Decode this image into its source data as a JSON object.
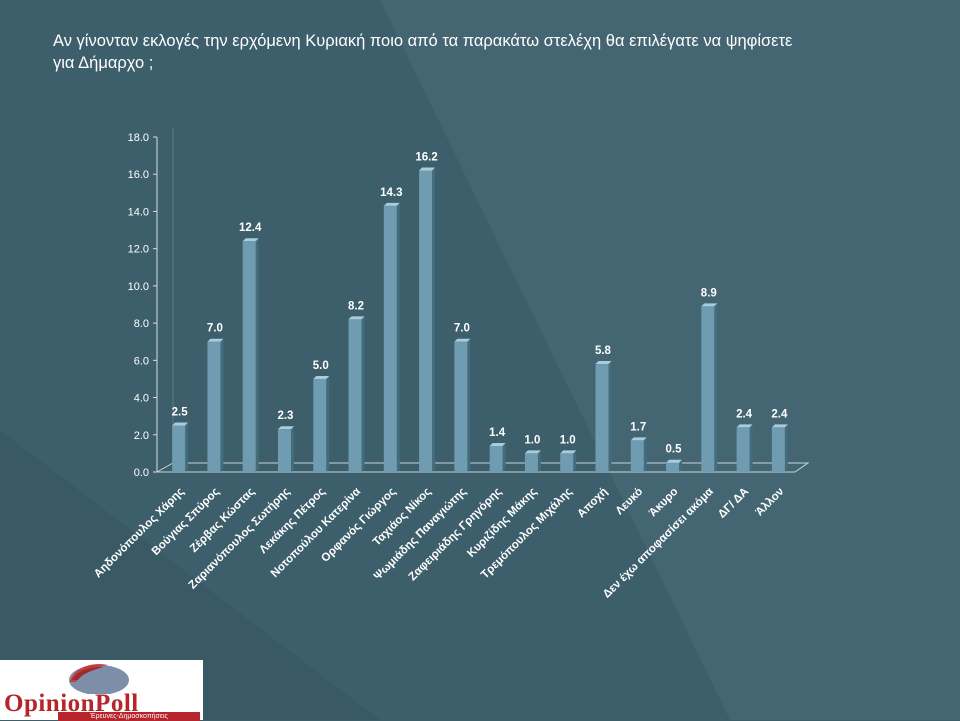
{
  "page": {
    "title": "Αν γίνονταν εκλογές την ερχόμενη Κυριακή ποιο από τα παρακάτω στελέχη θα επιλέγατε να ψηφίσετε για Δήμαρχο ;"
  },
  "logo": {
    "name": "OpinionPoll",
    "tagline": "Έρευνες-Δημοσκοπήσεις"
  },
  "colors": {
    "background": "#3d5e6b",
    "bar_front": "#6f9cb0",
    "bar_side": "#436c7d",
    "bar_top": "#a9cddd",
    "text": "#ffffff",
    "logo_red": "#b5252b"
  },
  "chart_data": {
    "type": "bar",
    "title": "",
    "xlabel": "",
    "ylabel": "",
    "ylim": [
      0,
      18
    ],
    "yticks": [
      "0.0",
      "2.0",
      "4.0",
      "6.0",
      "8.0",
      "10.0",
      "12.0",
      "14.0",
      "16.0",
      "18.0"
    ],
    "grid": false,
    "legend": "none",
    "categories": [
      "Αηδονόπουλος Χάρης",
      "Βούγιας Σπύρος",
      "Ζέρβας Κώστας",
      "Ζαριανόπουλος Σωτήρης",
      "Λεκάκης Πέτρος",
      "Νοτοπούλου Κατερίνα",
      "Ορφανός Γιώργος",
      "Ταχιάος Νίκος",
      "Ψωμιάδης Παναγιώτης",
      "Ζαφειριάδης Γρηγόρης",
      "Κυριζίδης Μάκης",
      "Τρεμόπουλος Μιχάλης",
      "Αποχή",
      "Λευκό",
      "Άκυρο",
      "Δεν έχω αποφασίσει ακόμα",
      "ΔΓ/ ΔΑ",
      "Άλλον"
    ],
    "values": [
      2.5,
      7.0,
      12.4,
      2.3,
      5.0,
      8.2,
      14.3,
      16.2,
      7.0,
      1.4,
      1.0,
      1.0,
      5.8,
      1.7,
      0.5,
      8.9,
      2.4,
      2.4
    ],
    "value_labels": [
      "2.5",
      "7.0",
      "12.4",
      "2.3",
      "5.0",
      "8.2",
      "14.3",
      "16.2",
      "7.0",
      "1.4",
      "1.0",
      "1.0",
      "5.8",
      "1.7",
      "0.5",
      "8.9",
      "2.4",
      "2.4"
    ]
  }
}
